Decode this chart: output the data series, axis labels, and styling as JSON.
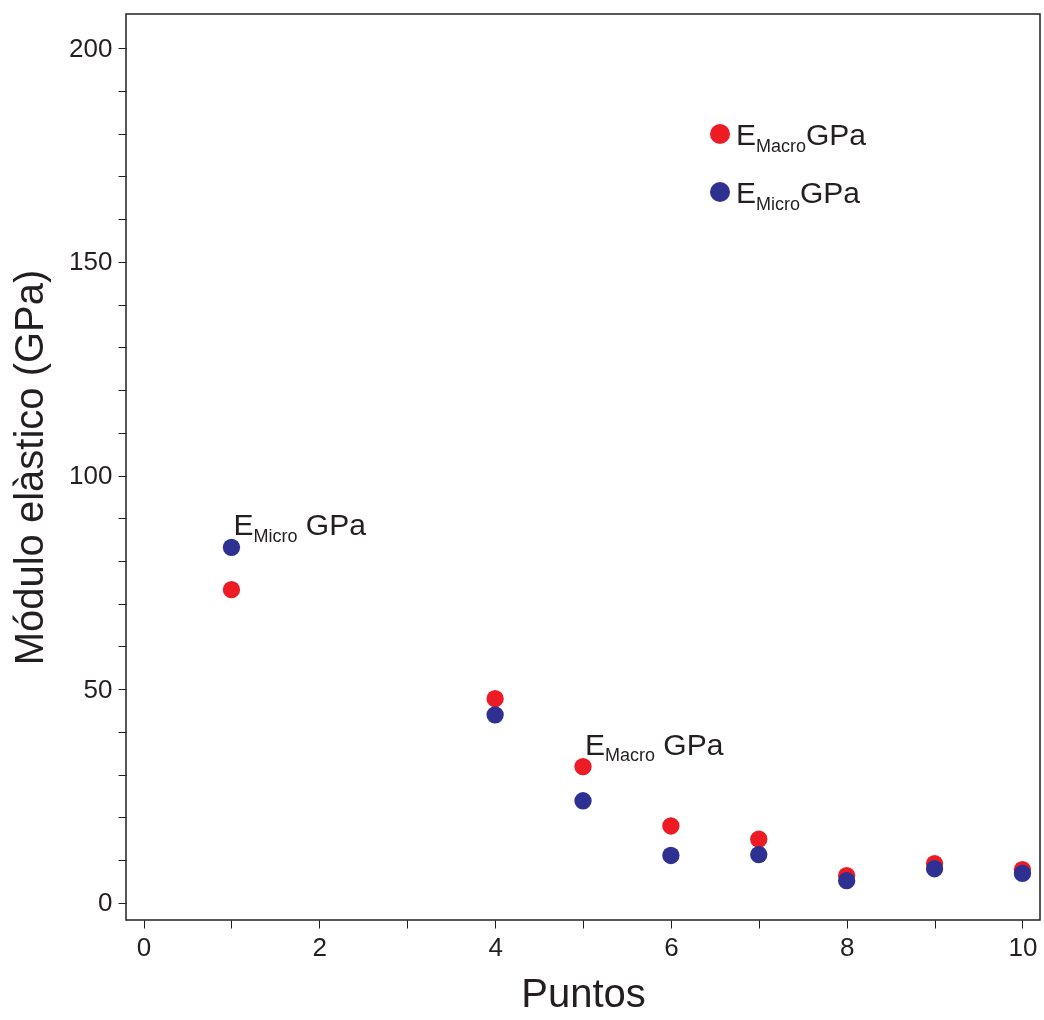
{
  "chart_data": {
    "type": "scatter",
    "xlabel": "Puntos",
    "ylabel": "Módulo elàstico   (GPa)",
    "x": [
      1,
      4,
      5,
      6,
      7,
      8,
      9,
      10
    ],
    "series": [
      {
        "name": "E$_{Macro}$GPa",
        "color": "#ed1c24",
        "values": [
          73.3,
          47.8,
          31.9,
          18,
          14.9,
          6.4,
          9.2,
          7.8
        ]
      },
      {
        "name": "E$_{Micro}$GPa",
        "color": "#2e3192",
        "values": [
          83.2,
          44,
          23.9,
          11.1,
          11.3,
          5.2,
          8,
          6.9
        ]
      }
    ],
    "annotations": [
      {
        "text": "E$_{Micro}$ GPa",
        "x": 1,
        "y": 83.2
      },
      {
        "text": "E$_{Macro}$ GPa",
        "x": 5,
        "y": 31.9
      }
    ],
    "xlim": [
      -0.2,
      10.2
    ],
    "ylim": [
      -4,
      208
    ],
    "xticks": [
      0,
      {
        "value": 1,
        "label": null
      },
      2,
      {
        "value": 3,
        "label": null
      },
      4,
      {
        "value": 5,
        "label": null
      },
      6,
      {
        "value": 7,
        "label": null
      },
      8,
      {
        "value": 9,
        "label": null
      },
      10
    ],
    "yticks": [
      0,
      {
        "value": 10,
        "label": null
      },
      {
        "value": 20,
        "label": null
      },
      {
        "value": 30,
        "label": null
      },
      {
        "value": 40,
        "label": null
      },
      50,
      {
        "value": 60,
        "label": null
      },
      {
        "value": 70,
        "label": null
      },
      {
        "value": 80,
        "label": null
      },
      {
        "value": 90,
        "label": null
      },
      100,
      {
        "value": 110,
        "label": null
      },
      {
        "value": 120,
        "label": null
      },
      {
        "value": 130,
        "label": null
      },
      {
        "value": 140,
        "label": null
      },
      150,
      {
        "value": 160,
        "label": null
      },
      {
        "value": 170,
        "label": null
      },
      {
        "value": 180,
        "label": null
      },
      {
        "value": 190,
        "label": null
      },
      200
    ],
    "marker": "circle",
    "grid": false,
    "legend": "top right"
  }
}
